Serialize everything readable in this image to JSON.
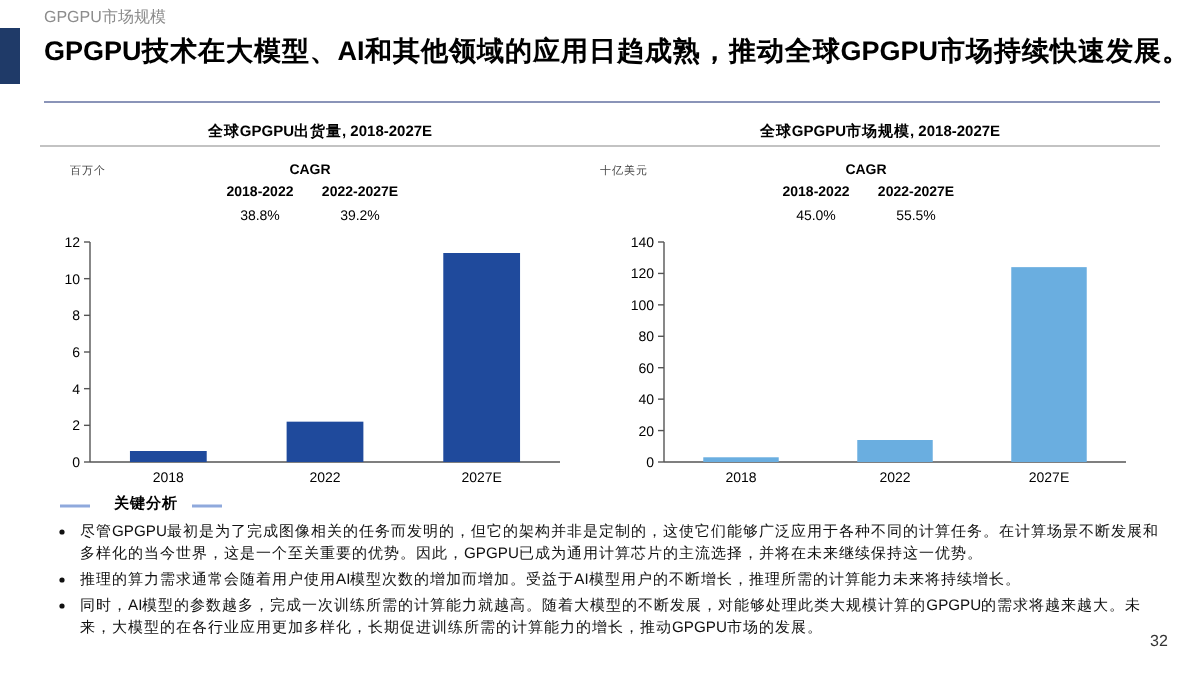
{
  "chart_data": [
    {
      "type": "other",
      "title": "GPGPU技术在大模型、AI和其他领域的应用日趋成熟，推动全球GPGPU市场持续快速发展。",
      "subtitle": "GPGPU市场规模"
    },
    {
      "type": "bar",
      "title": "全球GPGPU出货量, 2018-2027E",
      "ylabel": "百万个",
      "categories": [
        "2018",
        "2022",
        "2027E"
      ],
      "values": [
        0.6,
        2.2,
        11.4
      ],
      "color": "#1f4a9c",
      "ylim": [
        0,
        12
      ],
      "yticks": [
        0,
        2,
        4,
        6,
        8,
        10,
        12
      ],
      "annotations": [
        "CAGR",
        "2018-2022",
        "2022-2027E",
        "38.8%",
        "39.2%"
      ]
    },
    {
      "type": "bar",
      "title": "全球GPGPU市场规模, 2018-2027E",
      "ylabel": "十亿美元",
      "categories": [
        "2018",
        "2022",
        "2027E"
      ],
      "values": [
        3,
        14,
        124
      ],
      "color": "#6aaee0",
      "ylim": [
        0,
        140
      ],
      "yticks": [
        0,
        20,
        40,
        60,
        80,
        100,
        120,
        140
      ],
      "annotations": [
        "CAGR",
        "2018-2022",
        "2022-2027E",
        "45.0%",
        "55.5%"
      ]
    },
    {
      "type": "other",
      "title": "关键分析",
      "annotations": [
        "尽管GPGPU最初是为了完成图像相关的任务而发明的，但它的架构并非是定制的，这使它们能够广泛应用于各种不同的计算任务。在计算场景不断发展和多样化的当今世界，这是一个至关重要的优势。因此，GPGPU已成为通用计算芯片的主流选择，并将在未来继续保持这一优势。",
        "推理的算力需求通常会随着用户使用AI模型次数的增加而增加。受益于AI模型用户的不断增长，推理所需的计算能力未来将持续增长。",
        "同时，AI模型的参数越多，完成一次训练所需的计算能力就越高。随着大模型的不断发展，对能够处理此类大规模计算的GPGPU的需求将越来越大。未来，大模型的在各行业应用更加多样化，长期促进训练所需的计算能力的增长，推动GPGPU市场的发展。",
        "32"
      ]
    }
  ]
}
